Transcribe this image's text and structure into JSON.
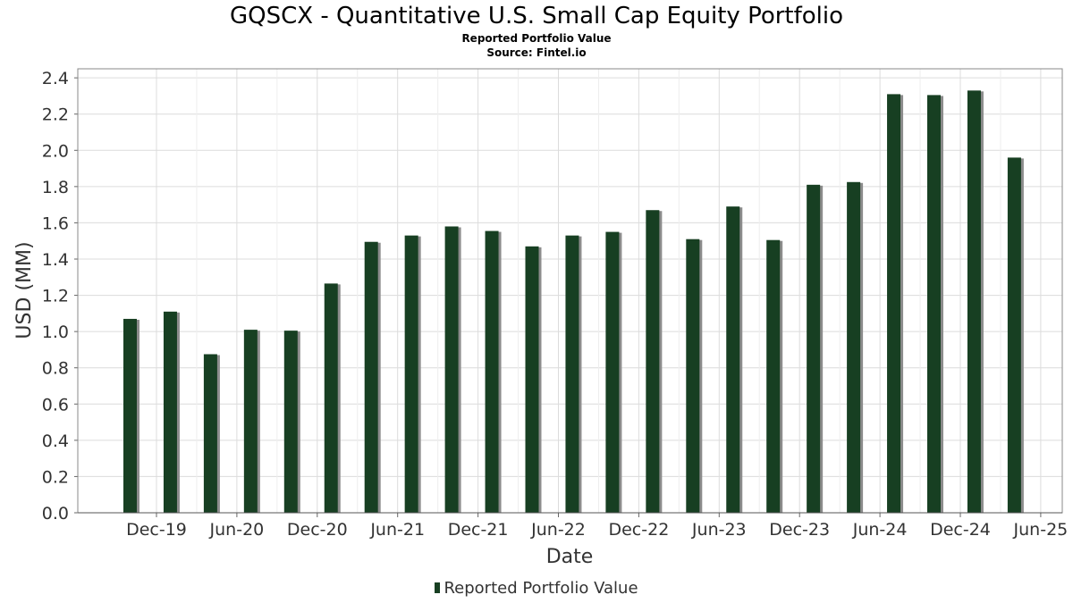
{
  "title": "GQSCX - Quantitative U.S. Small Cap Equity Portfolio",
  "subtitle": "Reported Portfolio Value",
  "source": "Source: Fintel.io",
  "chart_data": {
    "type": "bar",
    "title": "GQSCX - Quantitative U.S. Small Cap Equity Portfolio",
    "xlabel": "Date",
    "ylabel": "USD (MM)",
    "ylim": [
      0,
      2.45
    ],
    "yticks": [
      "0.0",
      "0.2",
      "0.4",
      "0.6",
      "0.8",
      "1.0",
      "1.2",
      "1.4",
      "1.6",
      "1.8",
      "2.0",
      "2.2",
      "2.4"
    ],
    "xticks": [
      "Dec-19",
      "Jun-20",
      "Dec-20",
      "Jun-21",
      "Dec-21",
      "Jun-22",
      "Dec-22",
      "Jun-23",
      "Dec-23",
      "Jun-24",
      "Dec-24",
      "Jun-25"
    ],
    "grid": true,
    "legend": "bottom",
    "series": [
      {
        "name": "Reported Portfolio Value",
        "color": "#173f22",
        "shadow_color": "#8c8c8c",
        "values": [
          1.07,
          1.11,
          0.875,
          1.01,
          1.005,
          1.265,
          1.495,
          1.53,
          1.58,
          1.555,
          1.47,
          1.53,
          1.55,
          1.67,
          1.51,
          1.69,
          1.505,
          1.81,
          1.825,
          2.31,
          2.305,
          2.33,
          1.96
        ]
      }
    ]
  }
}
